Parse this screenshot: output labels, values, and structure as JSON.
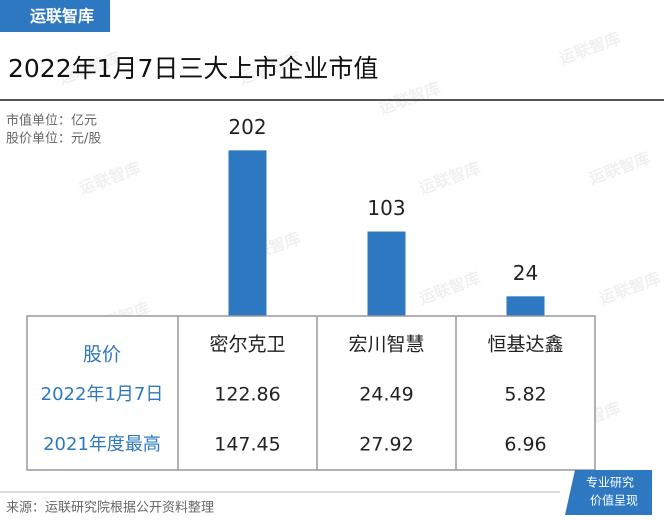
{
  "logo": "运联智库",
  "watermark": "运联智库",
  "chart_data": {
    "type": "bar",
    "title": "2022年1月7日三大上市企业市值",
    "notes": [
      "市值单位：亿元",
      "股价单位：元/股"
    ],
    "categories": [
      "密尔克卫",
      "宏川智慧",
      "恒基达鑫"
    ],
    "values": [
      202,
      103,
      24
    ],
    "color": "#2e78c2"
  },
  "table": {
    "header": "股价",
    "rows": [
      {
        "label": "2022年1月7日",
        "values": [
          122.86,
          24.49,
          5.82
        ]
      },
      {
        "label": "2021年度最高",
        "values": [
          147.45,
          27.92,
          6.96
        ]
      }
    ]
  },
  "source": "来源：运联研究院根据公开资料整理",
  "badge": [
    "专业研究",
    "价值呈现"
  ]
}
